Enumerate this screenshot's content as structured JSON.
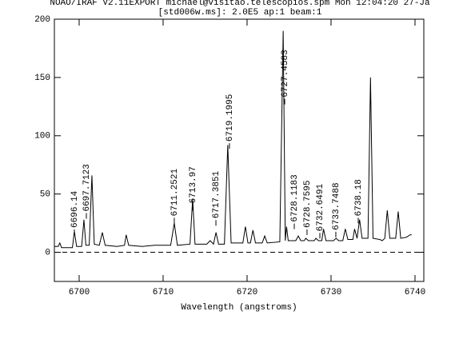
{
  "chart_data": {
    "type": "line",
    "title": "NOAO/IRAF V2.11EXPORT michael@visitao.telescopios.spm Mon 12:04:20 27-Ja",
    "subtitle": "[std006w.ms]:  2.0E5 ap:1 beam:1",
    "xlabel": "Wavelength (angstroms)",
    "x": [
      6697.1,
      6697.5,
      6697.7,
      6697.9,
      6698.5,
      6699.2,
      6699.43,
      6699.7,
      6700.3,
      6700.57,
      6700.8,
      6701.2,
      6701.52,
      6701.8,
      6702.4,
      6702.76,
      6703.1,
      6704.5,
      6705.4,
      6705.6,
      6705.9,
      6707.5,
      6709,
      6710.9,
      6711.33,
      6711.7,
      6713.2,
      6713.52,
      6713.8,
      6715.2,
      6715.6,
      6716,
      6716.3,
      6716.6,
      6717.3,
      6717.7,
      6718.1,
      6719.5,
      6719.8,
      6720.1,
      6720.4,
      6720.7,
      6721,
      6721.8,
      6722.1,
      6722.4,
      6723.9,
      6724.3,
      6724.55,
      6724.7,
      6724.9,
      6725.8,
      6726.1,
      6726.4,
      6726.8,
      6727,
      6727.3,
      6728,
      6728.2,
      6728.5,
      6728.9,
      6729.1,
      6729.4,
      6730.3,
      6730.6,
      6730.9,
      6731.4,
      6731.7,
      6732,
      6732.6,
      6732.8,
      6733.1,
      6733.4,
      6733.7,
      6734.4,
      6734.7,
      6735,
      6735.8,
      6736.1,
      6736.4,
      6736.7,
      6737,
      6737.7,
      6738,
      6738.3,
      6739,
      6739.4,
      6739.6
    ],
    "series": [
      {
        "color": "#000000",
        "values": [
          5,
          5,
          8,
          4,
          4,
          4,
          18,
          5,
          5,
          28,
          6,
          6,
          66,
          7,
          6,
          17,
          6,
          5,
          6,
          15,
          6,
          5,
          6,
          6,
          25,
          6,
          7,
          46,
          7,
          7,
          10,
          7,
          17,
          7,
          7,
          92,
          8,
          8,
          22,
          8,
          8,
          19,
          8,
          8,
          14,
          8,
          9,
          190,
          10,
          22,
          10,
          10,
          14,
          10,
          10,
          12,
          10,
          10,
          12,
          10,
          10,
          20,
          10,
          10,
          12,
          10,
          10,
          20,
          11,
          11,
          20,
          12,
          28,
          12,
          12,
          150,
          12,
          11,
          10,
          12,
          36,
          12,
          12,
          35,
          12,
          13,
          15,
          15
        ]
      }
    ],
    "zero_line": {
      "value": 0,
      "dashed": true
    },
    "annotations": [
      {
        "text": "6696.14",
        "x": 6699.43,
        "y": 21
      },
      {
        "text": "6697.7123",
        "x": 6700.86,
        "y": 35
      },
      {
        "text": "6711.2521",
        "x": 6711.33,
        "y": 31
      },
      {
        "text": "6713.97",
        "x": 6713.52,
        "y": 42
      },
      {
        "text": "6717.3851",
        "x": 6716.29,
        "y": 29
      },
      {
        "text": "6719.1995",
        "x": 6717.9,
        "y": 95
      },
      {
        "text": "6727.4583",
        "x": 6724.48,
        "y": 133
      },
      {
        "text": "6728.1183",
        "x": 6725.62,
        "y": 26
      },
      {
        "text": "6728.7595",
        "x": 6727.14,
        "y": 21
      },
      {
        "text": "6732.6491",
        "x": 6728.67,
        "y": 18
      },
      {
        "text": "6733.7488",
        "x": 6730.57,
        "y": 19
      },
      {
        "text": "6738.18",
        "x": 6733.24,
        "y": 31
      }
    ],
    "xlim": [
      6697.05,
      6741.05
    ],
    "xticks": [
      6700,
      6710,
      6720,
      6730,
      6740
    ],
    "ylim": [
      -25,
      200
    ],
    "yticks": [
      0,
      50,
      100,
      150,
      200
    ]
  }
}
